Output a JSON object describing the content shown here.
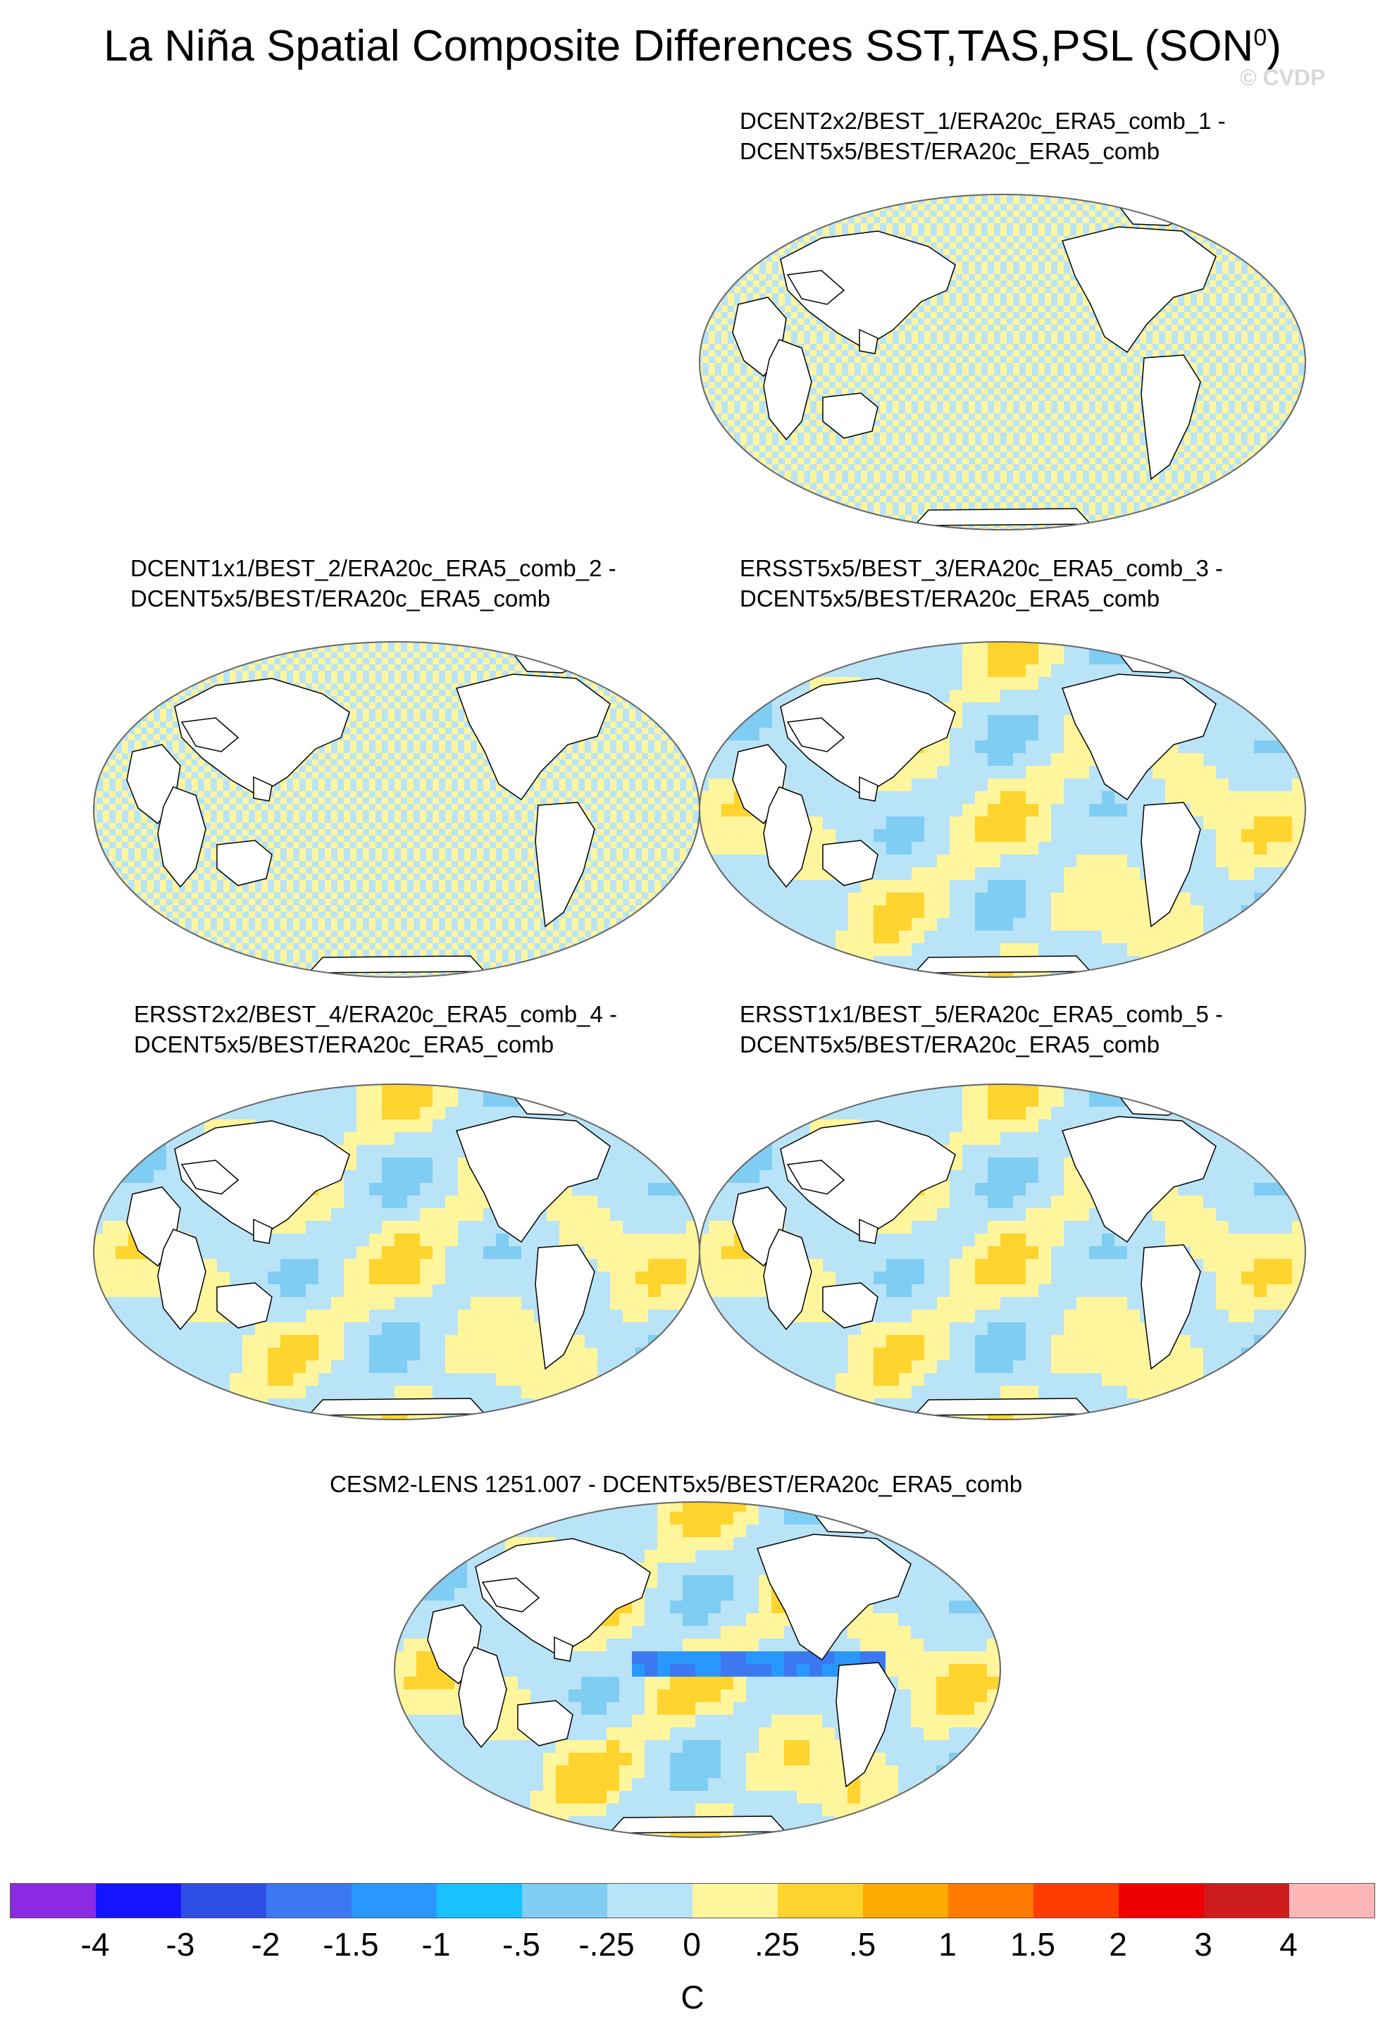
{
  "title": {
    "main": "La Niña Spatial Composite Differences SST,TAS,PSL (SON",
    "superscript": "0",
    "close": ")",
    "watermark": "© CVDP"
  },
  "panels": [
    {
      "line1": "DCENT2x2/BEST_1/ERA20c_ERA5_comb_1 -",
      "line2": "DCENT5x5/BEST/ERA20c_ERA5_comb",
      "style": "striped"
    },
    {
      "line1": "DCENT1x1/BEST_2/ERA20c_ERA5_comb_2 -",
      "line2": "DCENT5x5/BEST/ERA20c_ERA5_comb",
      "style": "striped"
    },
    {
      "line1": "ERSST5x5/BEST_3/ERA20c_ERA5_comb_3 -",
      "line2": "DCENT5x5/BEST/ERA20c_ERA5_comb",
      "style": "smooth"
    },
    {
      "line1": "ERSST2x2/BEST_4/ERA20c_ERA5_comb_4 -",
      "line2": "DCENT5x5/BEST/ERA20c_ERA5_comb",
      "style": "smooth"
    },
    {
      "line1": "ERSST1x1/BEST_5/ERA20c_ERA5_comb_5 -",
      "line2": "DCENT5x5/BEST/ERA20c_ERA5_comb",
      "style": "smooth"
    },
    {
      "line1": "CESM2-LENS 1251.007 - DCENT5x5/BEST/ERA20c_ERA5_comb",
      "line2": "",
      "style": "model"
    }
  ],
  "colorbar": {
    "colors": [
      "#8a2be2",
      "#1414ff",
      "#2e4ee6",
      "#3c78f0",
      "#2898ff",
      "#19c2ff",
      "#7fcdf3",
      "#b9e3f7",
      "#fff59d",
      "#ffd42f",
      "#ffaa00",
      "#ff7a00",
      "#ff3c00",
      "#ee0000",
      "#cc1c1c",
      "#ffb6b6"
    ],
    "labels": [
      "-4",
      "-3",
      "-2",
      "-1.5",
      "-1",
      "-.5",
      "-.25",
      "0",
      ".25",
      ".5",
      "1",
      "1.5",
      "2",
      "3",
      "4"
    ],
    "units": "C"
  }
}
